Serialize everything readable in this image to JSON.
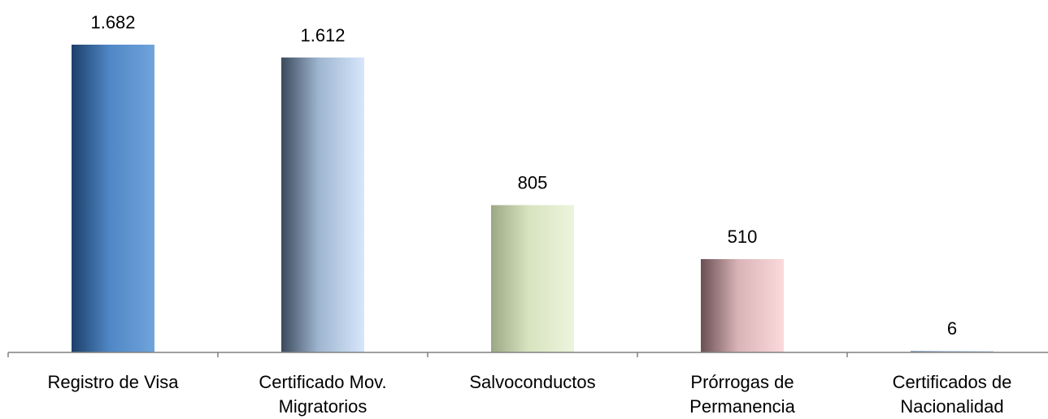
{
  "chart_data": {
    "type": "bar",
    "categories": [
      [
        "Registro de Visa"
      ],
      [
        "Certificado Mov.",
        "Migratorios"
      ],
      [
        "Salvoconductos"
      ],
      [
        "Prórrogas de",
        "Permanencia"
      ],
      [
        "Certificados de",
        "Nacionalidad"
      ]
    ],
    "values": [
      1682,
      1612,
      805,
      510,
      6
    ],
    "value_labels": [
      "1.682",
      "1.612",
      "805",
      "510",
      "6"
    ],
    "bar_colors": [
      [
        "#1c3f6a",
        "#4f86c4",
        "#6fa4dc"
      ],
      [
        "#3b4a5c",
        "#9fb6d0",
        "#d6e6fb"
      ],
      [
        "#9ca885",
        "#d7e3bf",
        "#edf4dc"
      ],
      [
        "#6a4f52",
        "#d9b4b7",
        "#fbd9db"
      ],
      [
        "#8ea4c0",
        "#b8c8dd",
        "#d5e0ee"
      ]
    ],
    "title": "",
    "xlabel": "",
    "ylabel": "",
    "ylim": [
      0,
      1682
    ],
    "grid": false,
    "legend": "none"
  }
}
